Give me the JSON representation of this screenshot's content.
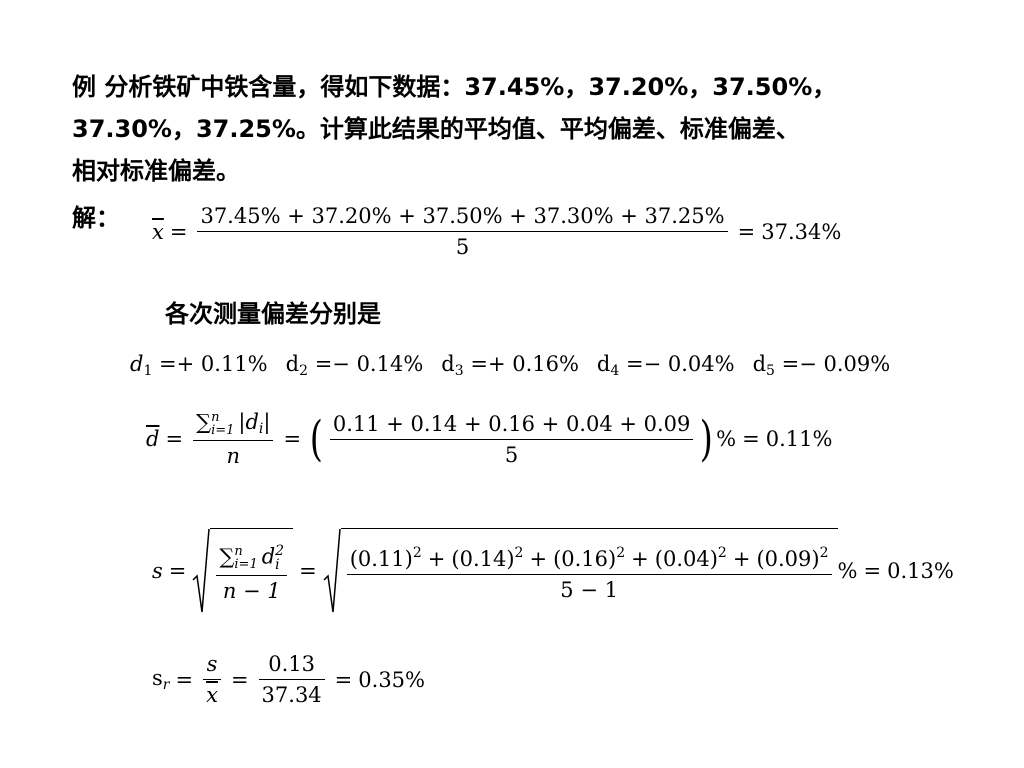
{
  "problem": {
    "line1": "例 分析铁矿中铁含量，得如下数据：37.45%，37.20%，37.50%，",
    "line2": "37.30%，37.25%。计算此结果的平均值、平均偏差、标准偏差、",
    "line3": "相对标准偏差。"
  },
  "solution_label": "解：",
  "mean": {
    "lhs": "x",
    "numerator": "37.45% + 37.20% + 37.50% + 37.30% + 37.25%",
    "denominator": "5",
    "result": "37.34%"
  },
  "deviation_heading": "各次测量偏差分别是",
  "deviations": [
    {
      "sym": "d",
      "idx": "1",
      "val": "+ 0.11%",
      "italic": true
    },
    {
      "sym": "d",
      "idx": "2",
      "val": "− 0.14%",
      "italic": false
    },
    {
      "sym": "d",
      "idx": "3",
      "val": "+ 0.16%",
      "italic": false
    },
    {
      "sym": "d",
      "idx": "4",
      "val": "− 0.04%",
      "italic": false
    },
    {
      "sym": "d",
      "idx": "5",
      "val": "− 0.09%",
      "italic": false
    }
  ],
  "mean_deviation": {
    "lhs": "d",
    "sum_upper": "n",
    "sum_lower": "i=1",
    "term": "|d",
    "term_sub": "i",
    "term_close": "|",
    "denominator": "n",
    "inner_numerator": "0.11 + 0.14 + 0.16 + 0.04 + 0.09",
    "inner_denominator": "5",
    "percent": "%",
    "result": "0.11%"
  },
  "std_dev": {
    "lhs": "s",
    "sum_upper": "n",
    "sum_lower": "i=1",
    "term": "d",
    "term_sub": "i",
    "term_sup": "2",
    "denominator": "n − 1",
    "values": [
      "(0.11)",
      "(0.14)",
      "(0.16)",
      "(0.04)",
      "(0.09)"
    ],
    "value_sup": "2",
    "inner_denominator": "5 − 1",
    "percent": "%",
    "result": "0.13%"
  },
  "rel_std_dev": {
    "lhs": "s",
    "lhs_sub": "r",
    "num1": "s",
    "den1": "x",
    "num2": "0.13",
    "den2": "37.34",
    "result": "0.35%"
  }
}
